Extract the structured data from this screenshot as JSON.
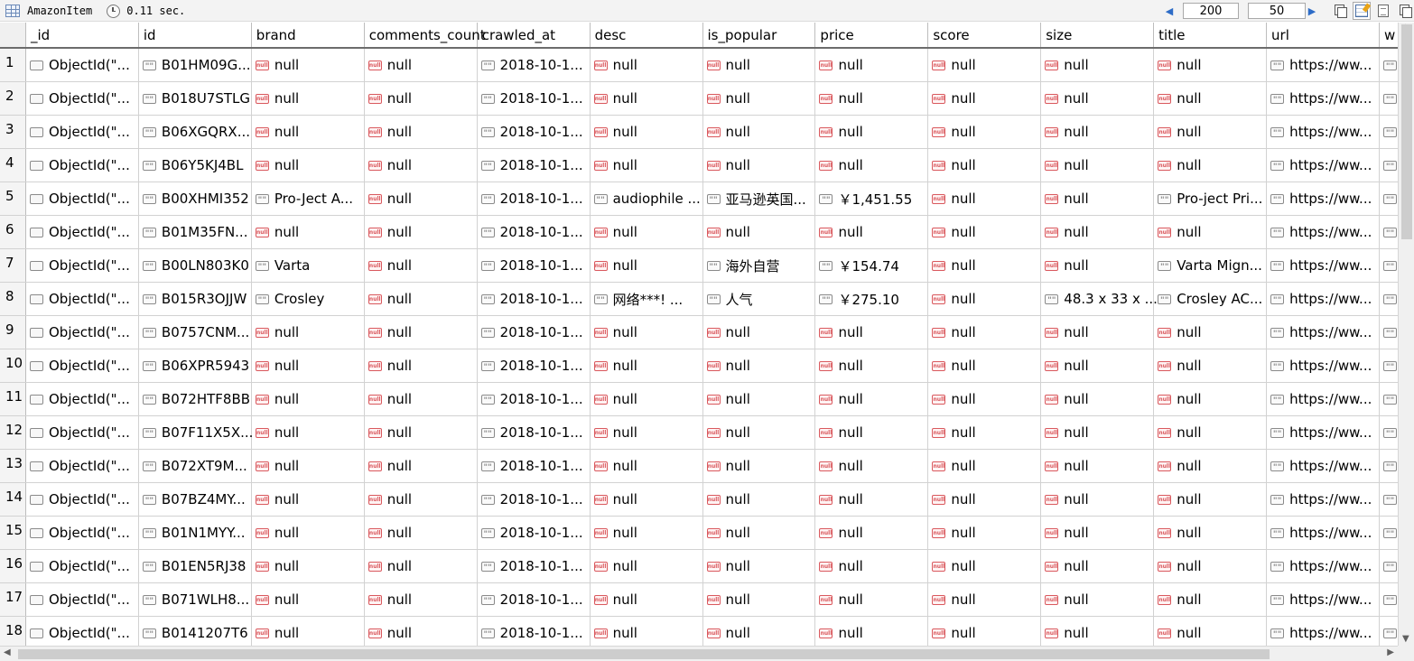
{
  "toolbar": {
    "collection": "AmazonItem",
    "elapsed": "0.11 sec.",
    "offset": "200",
    "limit": "50"
  },
  "columns": [
    "_id",
    "id",
    "brand",
    "comments_count",
    "crawled_at",
    "desc",
    "is_popular",
    "price",
    "score",
    "size",
    "title",
    "url",
    "w"
  ],
  "rows": [
    {
      "n": "1",
      "cells": [
        [
          "obj",
          "ObjectId(\"..."
        ],
        [
          "str",
          "B01HM09G..."
        ],
        [
          "null",
          "null"
        ],
        [
          "null",
          "null"
        ],
        [
          "str",
          "2018-10-1..."
        ],
        [
          "null",
          "null"
        ],
        [
          "null",
          "null"
        ],
        [
          "null",
          "null"
        ],
        [
          "null",
          "null"
        ],
        [
          "null",
          "null"
        ],
        [
          "null",
          "null"
        ],
        [
          "str",
          "https://ww..."
        ],
        [
          "str",
          ""
        ]
      ]
    },
    {
      "n": "2",
      "cells": [
        [
          "obj",
          "ObjectId(\"..."
        ],
        [
          "str",
          "B018U7STLG"
        ],
        [
          "null",
          "null"
        ],
        [
          "null",
          "null"
        ],
        [
          "str",
          "2018-10-1..."
        ],
        [
          "null",
          "null"
        ],
        [
          "null",
          "null"
        ],
        [
          "null",
          "null"
        ],
        [
          "null",
          "null"
        ],
        [
          "null",
          "null"
        ],
        [
          "null",
          "null"
        ],
        [
          "str",
          "https://ww..."
        ],
        [
          "str",
          ""
        ]
      ]
    },
    {
      "n": "3",
      "cells": [
        [
          "obj",
          "ObjectId(\"..."
        ],
        [
          "str",
          "B06XGQRX..."
        ],
        [
          "null",
          "null"
        ],
        [
          "null",
          "null"
        ],
        [
          "str",
          "2018-10-1..."
        ],
        [
          "null",
          "null"
        ],
        [
          "null",
          "null"
        ],
        [
          "null",
          "null"
        ],
        [
          "null",
          "null"
        ],
        [
          "null",
          "null"
        ],
        [
          "null",
          "null"
        ],
        [
          "str",
          "https://ww..."
        ],
        [
          "str",
          ""
        ]
      ]
    },
    {
      "n": "4",
      "cells": [
        [
          "obj",
          "ObjectId(\"..."
        ],
        [
          "str",
          "B06Y5KJ4BL"
        ],
        [
          "null",
          "null"
        ],
        [
          "null",
          "null"
        ],
        [
          "str",
          "2018-10-1..."
        ],
        [
          "null",
          "null"
        ],
        [
          "null",
          "null"
        ],
        [
          "null",
          "null"
        ],
        [
          "null",
          "null"
        ],
        [
          "null",
          "null"
        ],
        [
          "null",
          "null"
        ],
        [
          "str",
          "https://ww..."
        ],
        [
          "str",
          ""
        ]
      ]
    },
    {
      "n": "5",
      "cells": [
        [
          "obj",
          "ObjectId(\"..."
        ],
        [
          "str",
          "B00XHMI352"
        ],
        [
          "str",
          "Pro-Ject A..."
        ],
        [
          "null",
          "null"
        ],
        [
          "str",
          "2018-10-1..."
        ],
        [
          "str",
          "audiophile ..."
        ],
        [
          "str",
          "亚马逊英国..."
        ],
        [
          "str",
          "￥1,451.55"
        ],
        [
          "null",
          "null"
        ],
        [
          "null",
          "null"
        ],
        [
          "str",
          "Pro-ject Pri..."
        ],
        [
          "str",
          "https://ww..."
        ],
        [
          "str",
          ""
        ]
      ]
    },
    {
      "n": "6",
      "cells": [
        [
          "obj",
          "ObjectId(\"..."
        ],
        [
          "str",
          "B01M35FN..."
        ],
        [
          "null",
          "null"
        ],
        [
          "null",
          "null"
        ],
        [
          "str",
          "2018-10-1..."
        ],
        [
          "null",
          "null"
        ],
        [
          "null",
          "null"
        ],
        [
          "null",
          "null"
        ],
        [
          "null",
          "null"
        ],
        [
          "null",
          "null"
        ],
        [
          "null",
          "null"
        ],
        [
          "str",
          "https://ww..."
        ],
        [
          "str",
          ""
        ]
      ]
    },
    {
      "n": "7",
      "cells": [
        [
          "obj",
          "ObjectId(\"..."
        ],
        [
          "str",
          "B00LN803K0"
        ],
        [
          "str",
          "Varta"
        ],
        [
          "null",
          "null"
        ],
        [
          "str",
          "2018-10-1..."
        ],
        [
          "null",
          "null"
        ],
        [
          "str",
          "海外自营"
        ],
        [
          "str",
          "￥154.74"
        ],
        [
          "null",
          "null"
        ],
        [
          "null",
          "null"
        ],
        [
          "str",
          "Varta Mign..."
        ],
        [
          "str",
          "https://ww..."
        ],
        [
          "str",
          ""
        ]
      ]
    },
    {
      "n": "8",
      "cells": [
        [
          "obj",
          "ObjectId(\"..."
        ],
        [
          "str",
          "B015R3OJJW"
        ],
        [
          "str",
          "Crosley"
        ],
        [
          "null",
          "null"
        ],
        [
          "str",
          "2018-10-1..."
        ],
        [
          "str",
          "网络***!   ..."
        ],
        [
          "str",
          "人气"
        ],
        [
          "str",
          "￥275.10"
        ],
        [
          "null",
          "null"
        ],
        [
          "str",
          "48.3 x 33 x ..."
        ],
        [
          "str",
          "Crosley AC..."
        ],
        [
          "str",
          "https://ww..."
        ],
        [
          "str",
          ""
        ]
      ]
    },
    {
      "n": "9",
      "cells": [
        [
          "obj",
          "ObjectId(\"..."
        ],
        [
          "str",
          "B0757CNM..."
        ],
        [
          "null",
          "null"
        ],
        [
          "null",
          "null"
        ],
        [
          "str",
          "2018-10-1..."
        ],
        [
          "null",
          "null"
        ],
        [
          "null",
          "null"
        ],
        [
          "null",
          "null"
        ],
        [
          "null",
          "null"
        ],
        [
          "null",
          "null"
        ],
        [
          "null",
          "null"
        ],
        [
          "str",
          "https://ww..."
        ],
        [
          "str",
          ""
        ]
      ]
    },
    {
      "n": "10",
      "cells": [
        [
          "obj",
          "ObjectId(\"..."
        ],
        [
          "str",
          "B06XPR5943"
        ],
        [
          "null",
          "null"
        ],
        [
          "null",
          "null"
        ],
        [
          "str",
          "2018-10-1..."
        ],
        [
          "null",
          "null"
        ],
        [
          "null",
          "null"
        ],
        [
          "null",
          "null"
        ],
        [
          "null",
          "null"
        ],
        [
          "null",
          "null"
        ],
        [
          "null",
          "null"
        ],
        [
          "str",
          "https://ww..."
        ],
        [
          "str",
          ""
        ]
      ]
    },
    {
      "n": "11",
      "cells": [
        [
          "obj",
          "ObjectId(\"..."
        ],
        [
          "str",
          "B072HTF8BB"
        ],
        [
          "null",
          "null"
        ],
        [
          "null",
          "null"
        ],
        [
          "str",
          "2018-10-1..."
        ],
        [
          "null",
          "null"
        ],
        [
          "null",
          "null"
        ],
        [
          "null",
          "null"
        ],
        [
          "null",
          "null"
        ],
        [
          "null",
          "null"
        ],
        [
          "null",
          "null"
        ],
        [
          "str",
          "https://ww..."
        ],
        [
          "str",
          ""
        ]
      ]
    },
    {
      "n": "12",
      "cells": [
        [
          "obj",
          "ObjectId(\"..."
        ],
        [
          "str",
          "B07F11X5X..."
        ],
        [
          "null",
          "null"
        ],
        [
          "null",
          "null"
        ],
        [
          "str",
          "2018-10-1..."
        ],
        [
          "null",
          "null"
        ],
        [
          "null",
          "null"
        ],
        [
          "null",
          "null"
        ],
        [
          "null",
          "null"
        ],
        [
          "null",
          "null"
        ],
        [
          "null",
          "null"
        ],
        [
          "str",
          "https://ww..."
        ],
        [
          "str",
          ""
        ]
      ]
    },
    {
      "n": "13",
      "cells": [
        [
          "obj",
          "ObjectId(\"..."
        ],
        [
          "str",
          "B072XT9M..."
        ],
        [
          "null",
          "null"
        ],
        [
          "null",
          "null"
        ],
        [
          "str",
          "2018-10-1..."
        ],
        [
          "null",
          "null"
        ],
        [
          "null",
          "null"
        ],
        [
          "null",
          "null"
        ],
        [
          "null",
          "null"
        ],
        [
          "null",
          "null"
        ],
        [
          "null",
          "null"
        ],
        [
          "str",
          "https://ww..."
        ],
        [
          "str",
          ""
        ]
      ]
    },
    {
      "n": "14",
      "cells": [
        [
          "obj",
          "ObjectId(\"..."
        ],
        [
          "str",
          "B07BZ4MY..."
        ],
        [
          "null",
          "null"
        ],
        [
          "null",
          "null"
        ],
        [
          "str",
          "2018-10-1..."
        ],
        [
          "null",
          "null"
        ],
        [
          "null",
          "null"
        ],
        [
          "null",
          "null"
        ],
        [
          "null",
          "null"
        ],
        [
          "null",
          "null"
        ],
        [
          "null",
          "null"
        ],
        [
          "str",
          "https://ww..."
        ],
        [
          "str",
          ""
        ]
      ]
    },
    {
      "n": "15",
      "cells": [
        [
          "obj",
          "ObjectId(\"..."
        ],
        [
          "str",
          "B01N1MYY..."
        ],
        [
          "null",
          "null"
        ],
        [
          "null",
          "null"
        ],
        [
          "str",
          "2018-10-1..."
        ],
        [
          "null",
          "null"
        ],
        [
          "null",
          "null"
        ],
        [
          "null",
          "null"
        ],
        [
          "null",
          "null"
        ],
        [
          "null",
          "null"
        ],
        [
          "null",
          "null"
        ],
        [
          "str",
          "https://ww..."
        ],
        [
          "str",
          ""
        ]
      ]
    },
    {
      "n": "16",
      "cells": [
        [
          "obj",
          "ObjectId(\"..."
        ],
        [
          "str",
          "B01EN5RJ38"
        ],
        [
          "null",
          "null"
        ],
        [
          "null",
          "null"
        ],
        [
          "str",
          "2018-10-1..."
        ],
        [
          "null",
          "null"
        ],
        [
          "null",
          "null"
        ],
        [
          "null",
          "null"
        ],
        [
          "null",
          "null"
        ],
        [
          "null",
          "null"
        ],
        [
          "null",
          "null"
        ],
        [
          "str",
          "https://ww..."
        ],
        [
          "str",
          ""
        ]
      ]
    },
    {
      "n": "17",
      "cells": [
        [
          "obj",
          "ObjectId(\"..."
        ],
        [
          "str",
          "B071WLH8..."
        ],
        [
          "null",
          "null"
        ],
        [
          "null",
          "null"
        ],
        [
          "str",
          "2018-10-1..."
        ],
        [
          "null",
          "null"
        ],
        [
          "null",
          "null"
        ],
        [
          "null",
          "null"
        ],
        [
          "null",
          "null"
        ],
        [
          "null",
          "null"
        ],
        [
          "null",
          "null"
        ],
        [
          "str",
          "https://ww..."
        ],
        [
          "str",
          ""
        ]
      ]
    },
    {
      "n": "18",
      "cells": [
        [
          "obj",
          "ObjectId(\"..."
        ],
        [
          "str",
          "B0141207T6"
        ],
        [
          "null",
          "null"
        ],
        [
          "null",
          "null"
        ],
        [
          "str",
          "2018-10-1..."
        ],
        [
          "null",
          "null"
        ],
        [
          "null",
          "null"
        ],
        [
          "null",
          "null"
        ],
        [
          "null",
          "null"
        ],
        [
          "null",
          "null"
        ],
        [
          "null",
          "null"
        ],
        [
          "str",
          "https://ww..."
        ],
        [
          "str",
          ""
        ]
      ]
    }
  ],
  "icons": {
    "table": "table-grid-icon",
    "timer": "clock-icon",
    "prev": "prev-page-icon",
    "next": "next-page-icon",
    "tree_view": "tree-view-icon",
    "table_view": "table-view-icon",
    "text_view": "text-view-icon",
    "scroll_up": "scroll-up-icon",
    "scroll_down": "scroll-down-icon",
    "scroll_left": "scroll-left-icon",
    "scroll_right": "scroll-right-icon"
  },
  "colors": {
    "null_badge": "#d9595e",
    "string_badge": "#8a8a8a",
    "nav_arrow": "#2d6cc7"
  },
  "type_badges": {
    "null": "null",
    "str": "\"\"",
    "obj": ""
  }
}
